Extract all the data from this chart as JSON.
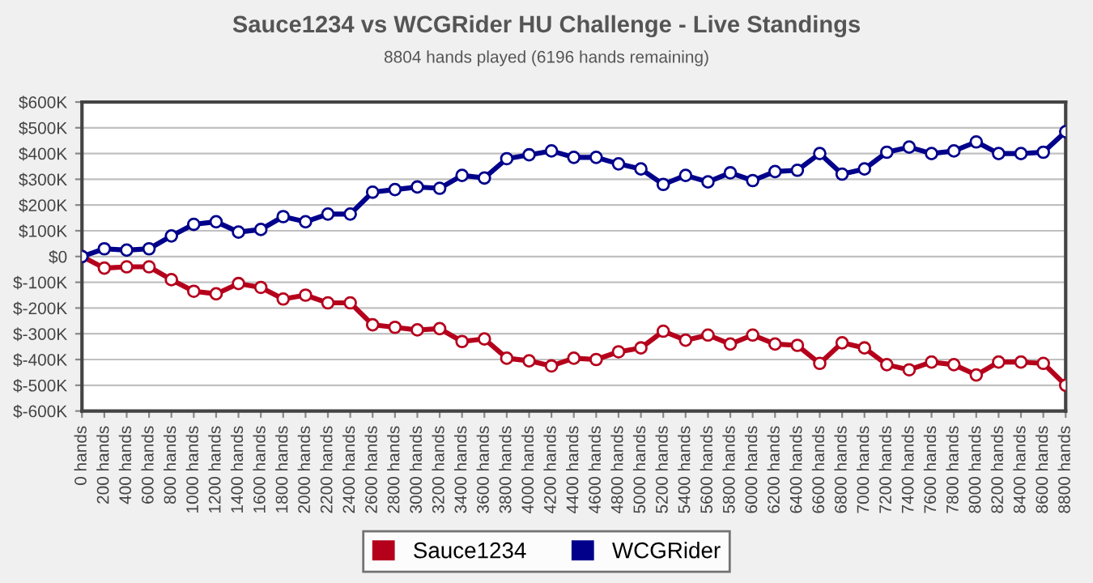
{
  "chart_data": {
    "type": "line",
    "title": "Sauce1234 vs WCGRider HU Challenge - Live Standings",
    "subtitle": "8804 hands played (6196 hands remaining)",
    "x": [
      0,
      200,
      400,
      600,
      800,
      1000,
      1200,
      1400,
      1600,
      1800,
      2000,
      2200,
      2400,
      2600,
      2800,
      3000,
      3200,
      3400,
      3600,
      3800,
      4000,
      4200,
      4400,
      4600,
      4800,
      5000,
      5200,
      5400,
      5600,
      5800,
      6000,
      6200,
      6400,
      6600,
      6800,
      7000,
      7200,
      7400,
      7600,
      7800,
      8000,
      8200,
      8400,
      8600,
      8800
    ],
    "series": [
      {
        "name": "Sauce1234",
        "color": "#b5001c",
        "values": [
          0,
          -45000,
          -40000,
          -40000,
          -90000,
          -135000,
          -145000,
          -105000,
          -120000,
          -165000,
          -150000,
          -180000,
          -180000,
          -265000,
          -275000,
          -285000,
          -280000,
          -330000,
          -320000,
          -395000,
          -405000,
          -425000,
          -395000,
          -400000,
          -370000,
          -355000,
          -290000,
          -325000,
          -305000,
          -340000,
          -305000,
          -340000,
          -345000,
          -415000,
          -335000,
          -355000,
          -420000,
          -440000,
          -410000,
          -420000,
          -460000,
          -410000,
          -410000,
          -415000,
          -500000
        ]
      },
      {
        "name": "WCGRider",
        "color": "#00008b",
        "values": [
          0,
          30000,
          25000,
          30000,
          80000,
          125000,
          135000,
          95000,
          105000,
          155000,
          135000,
          165000,
          165000,
          250000,
          260000,
          270000,
          265000,
          315000,
          305000,
          380000,
          395000,
          410000,
          385000,
          385000,
          360000,
          340000,
          280000,
          315000,
          290000,
          325000,
          295000,
          330000,
          335000,
          400000,
          320000,
          340000,
          405000,
          425000,
          400000,
          410000,
          445000,
          400000,
          400000,
          405000,
          485000
        ]
      }
    ],
    "xlim": [
      0,
      8800
    ],
    "xticks": [
      {
        "value": 0,
        "label": "0 hands"
      },
      {
        "value": 200,
        "label": "200 hands"
      },
      {
        "value": 400,
        "label": "400 hands"
      },
      {
        "value": 600,
        "label": "600 hands"
      },
      {
        "value": 800,
        "label": "800 hands"
      },
      {
        "value": 1000,
        "label": "1000 hands"
      },
      {
        "value": 1200,
        "label": "1200 hands"
      },
      {
        "value": 1400,
        "label": "1400 hands"
      },
      {
        "value": 1600,
        "label": "1600 hands"
      },
      {
        "value": 1800,
        "label": "1800 hands"
      },
      {
        "value": 2000,
        "label": "2000 hands"
      },
      {
        "value": 2200,
        "label": "2200 hands"
      },
      {
        "value": 2400,
        "label": "2400 hands"
      },
      {
        "value": 2600,
        "label": "2600 hands"
      },
      {
        "value": 2800,
        "label": "2800 hands"
      },
      {
        "value": 3000,
        "label": "3000 hands"
      },
      {
        "value": 3200,
        "label": "3200 hands"
      },
      {
        "value": 3400,
        "label": "3400 hands"
      },
      {
        "value": 3600,
        "label": "3600 hands"
      },
      {
        "value": 3800,
        "label": "3800 hands"
      },
      {
        "value": 4000,
        "label": "4000 hands"
      },
      {
        "value": 4200,
        "label": "4200 hands"
      },
      {
        "value": 4400,
        "label": "4400 hands"
      },
      {
        "value": 4600,
        "label": "4600 hands"
      },
      {
        "value": 4800,
        "label": "4800 hands"
      },
      {
        "value": 5000,
        "label": "5000 hands"
      },
      {
        "value": 5200,
        "label": "5200 hands"
      },
      {
        "value": 5400,
        "label": "5400 hands"
      },
      {
        "value": 5600,
        "label": "5600 hands"
      },
      {
        "value": 5800,
        "label": "5800 hands"
      },
      {
        "value": 6000,
        "label": "6000 hands"
      },
      {
        "value": 6200,
        "label": "6200 hands"
      },
      {
        "value": 6400,
        "label": "6400 hands"
      },
      {
        "value": 6600,
        "label": "6600 hands"
      },
      {
        "value": 6800,
        "label": "6800 hands"
      },
      {
        "value": 7000,
        "label": "7000 hands"
      },
      {
        "value": 7200,
        "label": "7200 hands"
      },
      {
        "value": 7400,
        "label": "7400 hands"
      },
      {
        "value": 7600,
        "label": "7600 hands"
      },
      {
        "value": 7800,
        "label": "7800 hands"
      },
      {
        "value": 8000,
        "label": "8000 hands"
      },
      {
        "value": 8200,
        "label": "8200 hands"
      },
      {
        "value": 8400,
        "label": "8400 hands"
      },
      {
        "value": 8600,
        "label": "8600 hands"
      },
      {
        "value": 8800,
        "label": "8800 hands"
      }
    ],
    "ylim": [
      -600000,
      600000
    ],
    "yticks": [
      {
        "value": 600000,
        "label": "$600K"
      },
      {
        "value": 500000,
        "label": "$500K"
      },
      {
        "value": 400000,
        "label": "$400K"
      },
      {
        "value": 300000,
        "label": "$300K"
      },
      {
        "value": 200000,
        "label": "$200K"
      },
      {
        "value": 100000,
        "label": "$100K"
      },
      {
        "value": 0,
        "label": "$0"
      },
      {
        "value": -100000,
        "label": "$-100K"
      },
      {
        "value": -200000,
        "label": "$-200K"
      },
      {
        "value": -300000,
        "label": "$-300K"
      },
      {
        "value": -400000,
        "label": "$-400K"
      },
      {
        "value": -500000,
        "label": "$-500K"
      },
      {
        "value": -600000,
        "label": "$-600K"
      }
    ],
    "grid": "y",
    "legend": "bottom",
    "marker": "circle",
    "line_style": "solid"
  }
}
